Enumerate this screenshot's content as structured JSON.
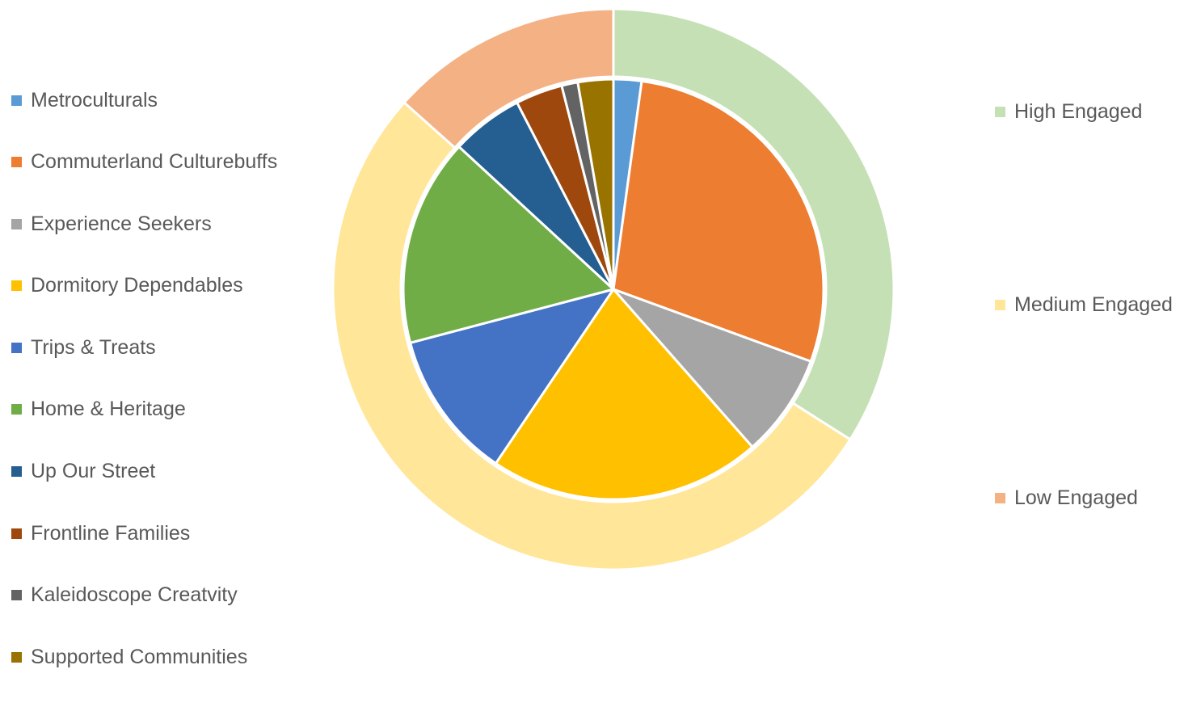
{
  "chart_data": {
    "type": "pie",
    "variant": "nested-donut",
    "title": "",
    "inner_ring": {
      "categories": [
        "Metroculturals",
        "Commuterland Culturebuffs",
        "Experience Seekers",
        "Dormitory Dependables",
        "Trips & Treats",
        "Home & Heritage",
        "Up Our Street",
        "Frontline Families",
        "Kaleidoscope Creatvity",
        "Supported Communities"
      ],
      "values": [
        1.9,
        25.1,
        7.0,
        18.5,
        10.1,
        14.1,
        4.9,
        3.2,
        1.1,
        2.4
      ],
      "colors": [
        "#5B9BD5",
        "#ED7D31",
        "#A5A5A5",
        "#FFC000",
        "#4472C4",
        "#70AD47",
        "#255E91",
        "#9E480E",
        "#636363",
        "#997300"
      ]
    },
    "outer_ring": {
      "categories": [
        "High Engaged",
        "Medium Engaged",
        "Low Engaged"
      ],
      "values": [
        34.0,
        52.6,
        13.4
      ],
      "colors": [
        "#C5E0B4",
        "#FFE699",
        "#F4B183"
      ]
    },
    "legend_placement": {
      "inner_ring": "left",
      "outer_ring": "right"
    }
  }
}
